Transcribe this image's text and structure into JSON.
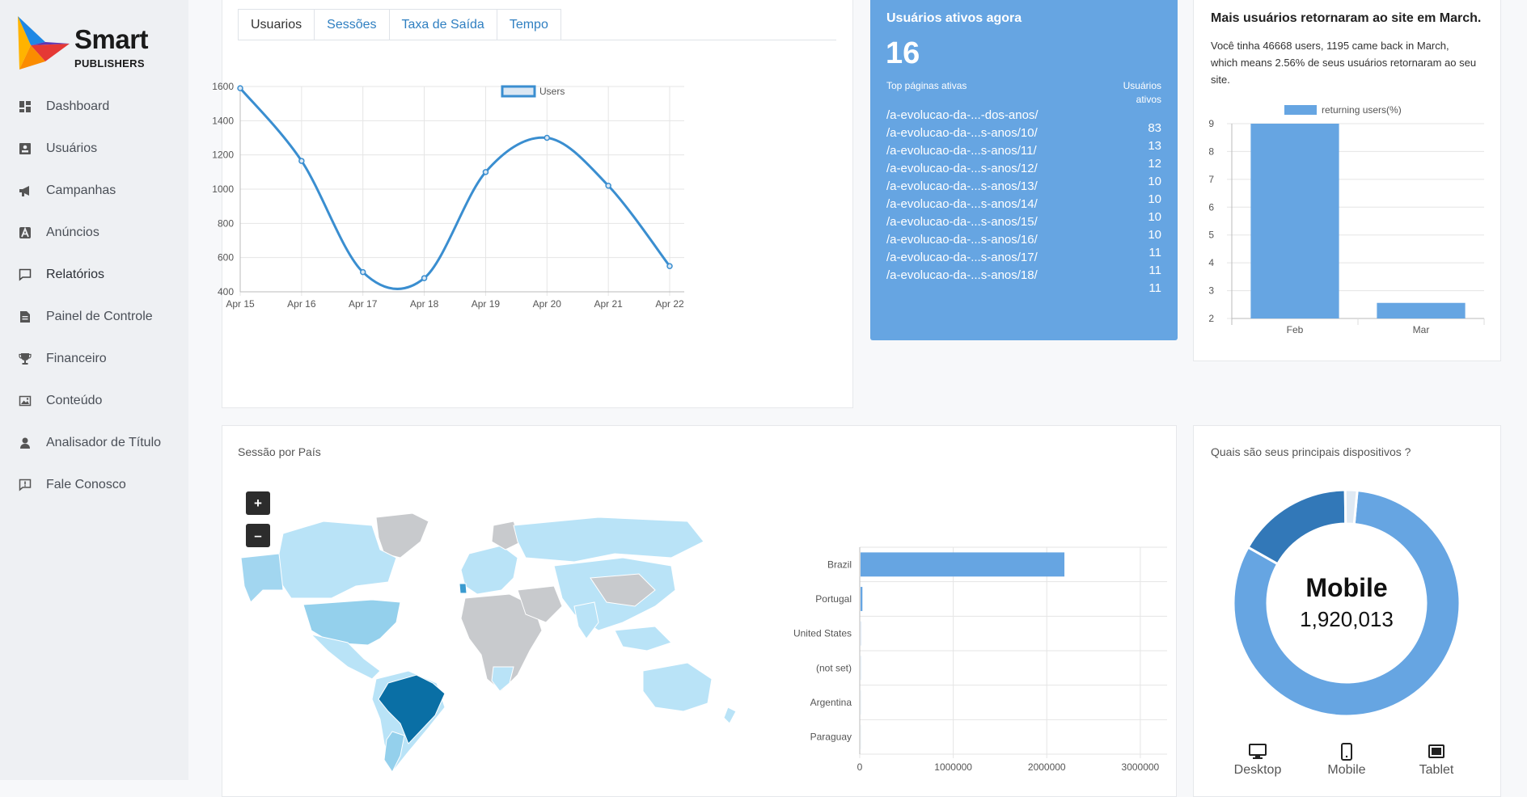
{
  "brand": {
    "name": "Smart",
    "sub": "PUBLISHERS"
  },
  "sidebar": {
    "items": [
      {
        "label": "Dashboard",
        "icon": "dashboard-icon"
      },
      {
        "label": "Usuários",
        "icon": "user-card-icon"
      },
      {
        "label": "Campanhas",
        "icon": "megaphone-icon"
      },
      {
        "label": "Anúncios",
        "icon": "ad-icon"
      },
      {
        "label": "Relatórios",
        "icon": "chat-icon"
      },
      {
        "label": "Painel de Controle",
        "icon": "document-icon"
      },
      {
        "label": "Financeiro",
        "icon": "trophy-icon"
      },
      {
        "label": "Conteúdo",
        "icon": "image-icon"
      },
      {
        "label": "Analisador de Título",
        "icon": "user-search-icon"
      },
      {
        "label": "Fale Conosco",
        "icon": "feedback-icon"
      }
    ]
  },
  "tabs": [
    {
      "label": "Usuarios",
      "active": true
    },
    {
      "label": "Sessões",
      "active": false
    },
    {
      "label": "Taxa de Saída",
      "active": false
    },
    {
      "label": "Tempo",
      "active": false
    }
  ],
  "active_users": {
    "title": "Usuários ativos agora",
    "count": "16",
    "col_pages": "Top páginas ativas",
    "col_users_1": "Usuários",
    "col_users_2": "ativos",
    "pages": [
      "/a-evolucao-da-...-dos-anos/",
      "/a-evolucao-da-...s-anos/10/",
      "/a-evolucao-da-...s-anos/11/",
      "/a-evolucao-da-...s-anos/12/",
      "/a-evolucao-da-...s-anos/13/",
      "/a-evolucao-da-...s-anos/14/",
      "/a-evolucao-da-...s-anos/15/",
      "/a-evolucao-da-...s-anos/16/",
      "/a-evolucao-da-...s-anos/17/",
      "/a-evolucao-da-...s-anos/18/"
    ],
    "counts": [
      "83",
      "13",
      "12",
      "10",
      "10",
      "10",
      "10",
      "11",
      "11",
      "11"
    ]
  },
  "returning": {
    "title": "Mais usuários retornaram ao site em March.",
    "description": "Você tinha 46668 users, 1195 came back in March, which means 2.56% de seus usuários retornaram ao seu site."
  },
  "session_country": {
    "title": "Sessão por País",
    "zoom_in": "+",
    "zoom_out": "–"
  },
  "devices_card": {
    "title": "Quais são seus principais dispositivos ?",
    "center_label": "Mobile",
    "center_value": "1,920,013",
    "tabs": [
      {
        "label": "Desktop",
        "icon": "desktop-icon"
      },
      {
        "label": "Mobile",
        "icon": "mobile-icon"
      },
      {
        "label": "Tablet",
        "icon": "tablet-icon"
      }
    ]
  },
  "colors": {
    "accent": "#66a5e2",
    "line": "#3a8ed0",
    "dark_blue": "#3278b8",
    "map_brazil": "#0a6fa5",
    "map_light": "#b9e3f7",
    "map_grey": "#c8cacd"
  },
  "chart_data": [
    {
      "type": "line",
      "series": [
        {
          "name": "Users",
          "values": [
            1590,
            1165,
            515,
            480,
            1100,
            1300,
            1020,
            550
          ]
        }
      ],
      "categories": [
        "Apr 15",
        "Apr 16",
        "Apr 17",
        "Apr 18",
        "Apr 19",
        "Apr 20",
        "Apr 21",
        "Apr 22"
      ],
      "yticks": [
        1600,
        1400,
        1200,
        1000,
        800,
        600,
        400
      ],
      "ylim": [
        400,
        1600
      ],
      "grid": true,
      "legend": "top-center"
    },
    {
      "type": "bar",
      "series": [
        {
          "name": "returning users(%)",
          "values": [
            9,
            2.56
          ]
        }
      ],
      "categories": [
        "Feb",
        "Mar"
      ],
      "yticks": [
        9,
        8,
        7,
        6,
        5,
        4,
        3,
        2
      ],
      "ylim": [
        2,
        9
      ],
      "grid": true,
      "legend": "top-center"
    },
    {
      "type": "bar",
      "orientation": "horizontal",
      "categories": [
        "Brazil",
        "Portugal",
        "United States",
        "(not set)",
        "Argentina",
        "Paraguay"
      ],
      "series": [
        {
          "values": [
            2180000,
            20000,
            2000,
            1500,
            1000,
            800
          ]
        }
      ],
      "xticks": [
        "0",
        "1000000",
        "2000000",
        "3000000"
      ],
      "xlim": [
        0,
        3200000
      ],
      "grid": true
    },
    {
      "type": "pie",
      "variant": "donut",
      "labels": [
        "Mobile",
        "Desktop",
        "Tablet"
      ],
      "values": [
        1920013,
        390000,
        40000
      ]
    }
  ]
}
